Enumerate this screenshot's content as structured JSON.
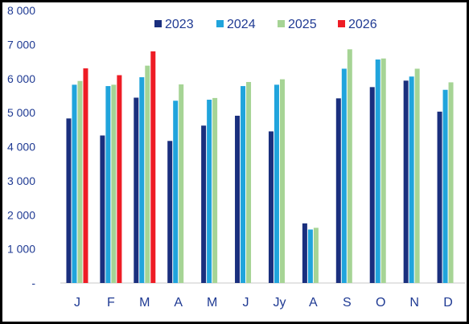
{
  "chart_data": {
    "type": "bar",
    "categories": [
      "J",
      "F",
      "M",
      "A",
      "M",
      "J",
      "Jy",
      "A",
      "S",
      "O",
      "N",
      "D"
    ],
    "series": [
      {
        "name": "2023",
        "color": "#1a2f7e",
        "values": [
          4830,
          4330,
          5440,
          4170,
          4620,
          4910,
          4450,
          1750,
          5420,
          5750,
          5940,
          5030
        ]
      },
      {
        "name": "2024",
        "color": "#20a4dc",
        "values": [
          5820,
          5780,
          6040,
          5350,
          5380,
          5780,
          5820,
          1570,
          6290,
          6560,
          6060,
          5670
        ]
      },
      {
        "name": "2025",
        "color": "#a6d495",
        "values": [
          5930,
          5820,
          6380,
          5830,
          5430,
          5900,
          5980,
          1620,
          6860,
          6590,
          6290,
          5890
        ]
      },
      {
        "name": "2026",
        "color": "#ee1c25",
        "values": [
          6300,
          6100,
          6800,
          null,
          null,
          null,
          null,
          null,
          null,
          null,
          null,
          null
        ]
      }
    ],
    "ylim": [
      0,
      8000
    ],
    "yticks": [
      0,
      1000,
      2000,
      3000,
      4000,
      5000,
      6000,
      7000,
      8000
    ],
    "ytick_labels": [
      "-",
      "1 000",
      "2 000",
      "3 000",
      "4 000",
      "5 000",
      "6 000",
      "7 000",
      "8 000"
    ],
    "legend_position": "top",
    "grid": false
  }
}
